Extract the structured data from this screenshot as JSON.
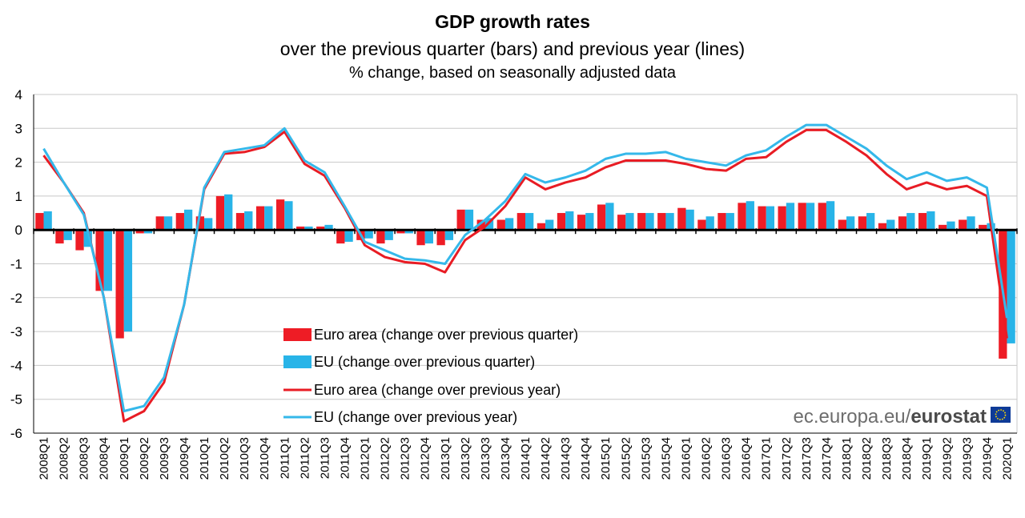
{
  "chart_data": {
    "type": "bar",
    "title": "GDP growth rates",
    "subtitle": "over the previous quarter (bars) and previous year (lines)",
    "subtitle2": "% change, based on seasonally adjusted data",
    "ylim": [
      -6,
      4
    ],
    "yticks": [
      -6,
      -5,
      -4,
      -3,
      -2,
      -1,
      0,
      1,
      2,
      3,
      4
    ],
    "grid": true,
    "legend_position": "bottom-left-center",
    "categories": [
      "2008Q1",
      "2008Q2",
      "2008Q3",
      "2008Q4",
      "2009Q1",
      "2009Q2",
      "2009Q3",
      "2009Q4",
      "2010Q1",
      "2010Q2",
      "2010Q3",
      "2010Q4",
      "2011Q1",
      "2011Q2",
      "2011Q3",
      "2011Q4",
      "2012Q1",
      "2012Q2",
      "2012Q3",
      "2012Q4",
      "2013Q1",
      "2013Q2",
      "2013Q3",
      "2013Q4",
      "2014Q1",
      "2014Q2",
      "2014Q3",
      "2014Q4",
      "2015Q1",
      "2015Q2",
      "2015Q3",
      "2015Q4",
      "2016Q1",
      "2016Q2",
      "2016Q3",
      "2016Q4",
      "2017Q1",
      "2017Q2",
      "2017Q3",
      "2017Q4",
      "2018Q1",
      "2018Q2",
      "2018Q3",
      "2018Q4",
      "2019Q1",
      "2019Q2",
      "2019Q3",
      "2019Q4",
      "2020Q1"
    ],
    "series": [
      {
        "name": "Euro area (change over previous quarter)",
        "kind": "bar",
        "color": "#ee1c25",
        "values": [
          0.5,
          -0.4,
          -0.6,
          -1.8,
          -3.2,
          -0.1,
          0.4,
          0.5,
          0.4,
          1.0,
          0.5,
          0.7,
          0.9,
          0.1,
          0.1,
          -0.4,
          -0.3,
          -0.4,
          -0.1,
          -0.45,
          -0.45,
          0.6,
          0.3,
          0.3,
          0.5,
          0.2,
          0.5,
          0.45,
          0.75,
          0.45,
          0.5,
          0.5,
          0.65,
          0.3,
          0.5,
          0.8,
          0.7,
          0.7,
          0.8,
          0.8,
          0.3,
          0.4,
          0.2,
          0.4,
          0.5,
          0.15,
          0.3,
          0.15,
          -3.8
        ]
      },
      {
        "name": "EU (change over previous quarter)",
        "kind": "bar",
        "color": "#28b4e8",
        "values": [
          0.55,
          -0.3,
          -0.5,
          -1.8,
          -3.0,
          -0.1,
          0.4,
          0.6,
          0.35,
          1.05,
          0.55,
          0.7,
          0.85,
          0.1,
          0.15,
          -0.35,
          -0.25,
          -0.3,
          -0.1,
          -0.4,
          -0.3,
          0.6,
          0.35,
          0.35,
          0.5,
          0.3,
          0.55,
          0.5,
          0.8,
          0.5,
          0.5,
          0.5,
          0.6,
          0.4,
          0.5,
          0.85,
          0.7,
          0.8,
          0.8,
          0.85,
          0.4,
          0.5,
          0.3,
          0.5,
          0.55,
          0.25,
          0.4,
          0.2,
          -3.35
        ]
      },
      {
        "name": "Euro area (change over previous year)",
        "kind": "line",
        "color": "#e81c24",
        "values": [
          2.2,
          1.4,
          0.5,
          -2.0,
          -5.65,
          -5.35,
          -4.5,
          -2.2,
          1.2,
          2.25,
          2.3,
          2.45,
          2.9,
          1.95,
          1.6,
          0.65,
          -0.45,
          -0.8,
          -0.95,
          -1.0,
          -1.25,
          -0.3,
          0.1,
          0.7,
          1.55,
          1.2,
          1.4,
          1.55,
          1.85,
          2.05,
          2.05,
          2.05,
          1.95,
          1.8,
          1.75,
          2.1,
          2.15,
          2.6,
          2.95,
          2.95,
          2.6,
          2.2,
          1.65,
          1.2,
          1.4,
          1.2,
          1.3,
          1.0,
          -3.2
        ]
      },
      {
        "name": "EU (change over previous year)",
        "kind": "line",
        "color": "#35b8ea",
        "values": [
          2.4,
          1.4,
          0.45,
          -2.0,
          -5.35,
          -5.2,
          -4.35,
          -2.2,
          1.25,
          2.3,
          2.4,
          2.5,
          3.0,
          2.05,
          1.7,
          0.7,
          -0.35,
          -0.6,
          -0.85,
          -0.9,
          -1.0,
          -0.15,
          0.3,
          0.85,
          1.65,
          1.4,
          1.55,
          1.75,
          2.1,
          2.25,
          2.25,
          2.3,
          2.1,
          2.0,
          1.9,
          2.2,
          2.35,
          2.75,
          3.1,
          3.1,
          2.75,
          2.4,
          1.9,
          1.5,
          1.7,
          1.45,
          1.55,
          1.25,
          -2.6
        ]
      }
    ]
  },
  "source": {
    "prefix": "ec.europa.eu/",
    "brand": "eurostat"
  }
}
